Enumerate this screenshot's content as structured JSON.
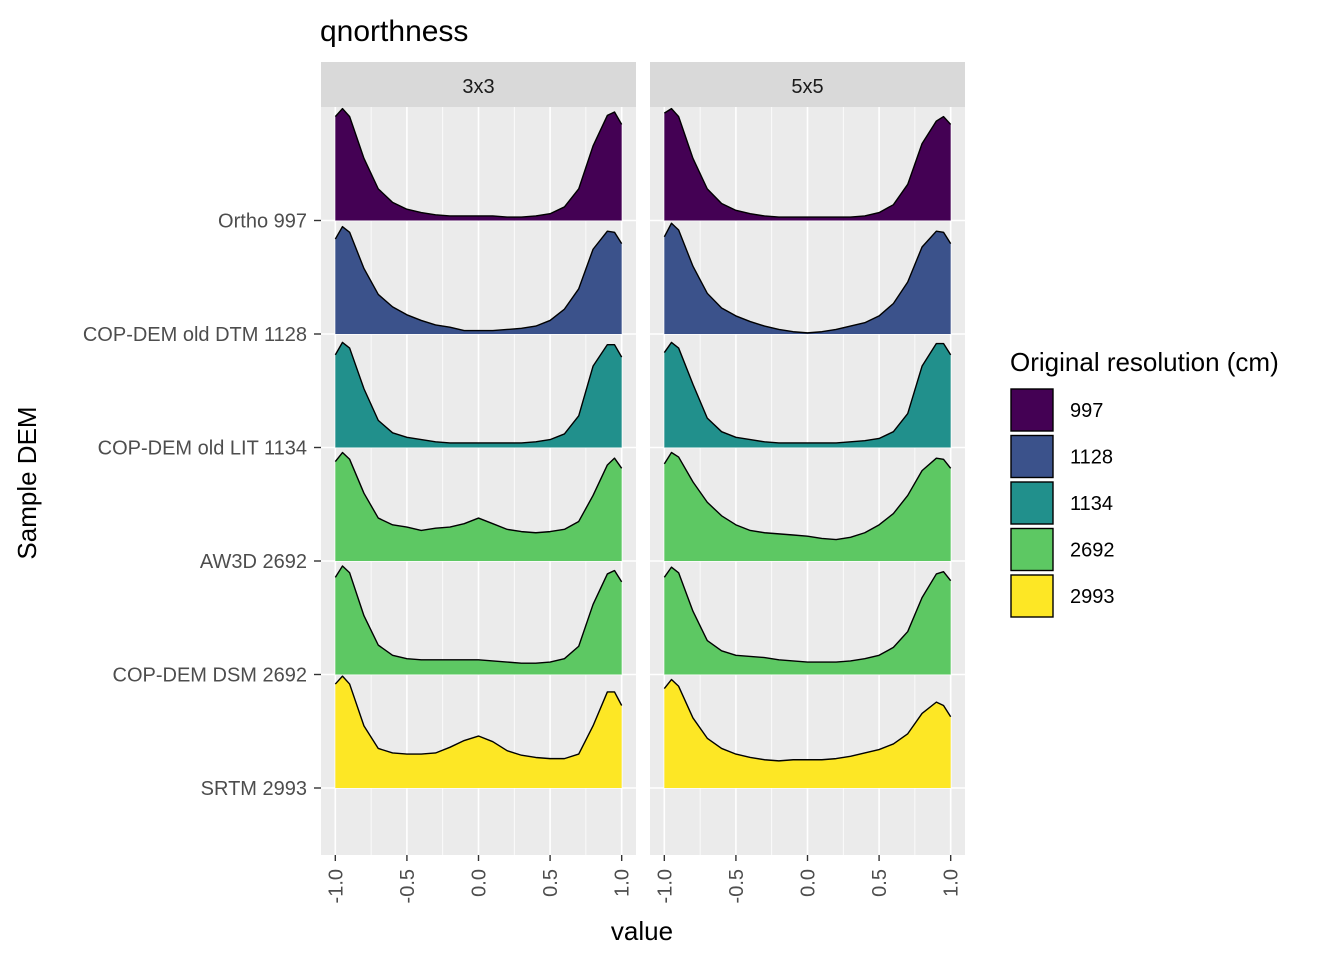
{
  "chart_data": {
    "type": "area",
    "subtype": "ridgeline-density",
    "title": "qnorthness",
    "xlabel": "value",
    "ylabel": "Sample DEM",
    "xlim": [
      -1.1,
      1.1
    ],
    "x_ticks": [
      -1.0,
      -0.5,
      0.0,
      0.5,
      1.0
    ],
    "x_tick_labels": [
      "-1.0",
      "-0.5",
      "0.0",
      "0.5",
      "1.0"
    ],
    "grid": true,
    "legend": {
      "title": "Original resolution (cm)",
      "placement": "right",
      "items": [
        {
          "label": "997",
          "color": "#440154"
        },
        {
          "label": "1128",
          "color": "#3B528B"
        },
        {
          "label": "1134",
          "color": "#21908C"
        },
        {
          "label": "2692",
          "color": "#5DC863"
        },
        {
          "label": "2993",
          "color": "#FDE725"
        }
      ]
    },
    "categories": [
      "Ortho 997",
      "COP-DEM old DTM 1128",
      "COP-DEM old LIT 1134",
      "AW3D 2692",
      "COP-DEM DSM 2692",
      "SRTM 2993"
    ],
    "x": [
      -1.0,
      -0.95,
      -0.9,
      -0.8,
      -0.7,
      -0.6,
      -0.5,
      -0.4,
      -0.3,
      -0.2,
      -0.1,
      0.0,
      0.1,
      0.2,
      0.3,
      0.4,
      0.5,
      0.6,
      0.7,
      0.8,
      0.9,
      0.95,
      1.0
    ],
    "facets": [
      {
        "name": "3x3",
        "series": [
          {
            "name": "Ortho 997",
            "color": "#440154",
            "values": [
              0.92,
              0.99,
              0.92,
              0.55,
              0.28,
              0.16,
              0.1,
              0.07,
              0.05,
              0.04,
              0.04,
              0.04,
              0.04,
              0.03,
              0.03,
              0.04,
              0.06,
              0.12,
              0.28,
              0.66,
              0.93,
              0.96,
              0.85
            ]
          },
          {
            "name": "COP-DEM old DTM 1128",
            "color": "#3B528B",
            "values": [
              0.84,
              0.95,
              0.9,
              0.58,
              0.35,
              0.24,
              0.17,
              0.12,
              0.08,
              0.06,
              0.03,
              0.03,
              0.03,
              0.04,
              0.05,
              0.07,
              0.12,
              0.22,
              0.4,
              0.75,
              0.91,
              0.9,
              0.8
            ]
          },
          {
            "name": "COP-DEM old LIT 1134",
            "color": "#21908C",
            "values": [
              0.82,
              0.93,
              0.88,
              0.52,
              0.24,
              0.13,
              0.09,
              0.07,
              0.05,
              0.04,
              0.04,
              0.04,
              0.04,
              0.04,
              0.04,
              0.05,
              0.07,
              0.12,
              0.28,
              0.72,
              0.91,
              0.91,
              0.8
            ]
          },
          {
            "name": "AW3D 2692",
            "color": "#5DC863",
            "values": [
              0.88,
              0.96,
              0.9,
              0.6,
              0.38,
              0.32,
              0.3,
              0.27,
              0.29,
              0.3,
              0.33,
              0.38,
              0.33,
              0.28,
              0.26,
              0.25,
              0.26,
              0.28,
              0.35,
              0.58,
              0.85,
              0.91,
              0.82
            ]
          },
          {
            "name": "COP-DEM DSM 2692",
            "color": "#5DC863",
            "values": [
              0.86,
              0.96,
              0.9,
              0.52,
              0.26,
              0.17,
              0.14,
              0.13,
              0.13,
              0.13,
              0.13,
              0.13,
              0.12,
              0.11,
              0.1,
              0.1,
              0.11,
              0.14,
              0.25,
              0.62,
              0.89,
              0.92,
              0.82
            ]
          },
          {
            "name": "SRTM 2993",
            "color": "#FDE725",
            "values": [
              0.92,
              0.99,
              0.92,
              0.55,
              0.35,
              0.31,
              0.3,
              0.3,
              0.31,
              0.36,
              0.42,
              0.46,
              0.41,
              0.33,
              0.29,
              0.27,
              0.26,
              0.26,
              0.3,
              0.55,
              0.85,
              0.85,
              0.73
            ]
          }
        ]
      },
      {
        "name": "5x5",
        "series": [
          {
            "name": "Ortho 997",
            "color": "#440154",
            "values": [
              0.95,
              0.99,
              0.92,
              0.55,
              0.28,
              0.15,
              0.09,
              0.06,
              0.04,
              0.03,
              0.03,
              0.03,
              0.03,
              0.03,
              0.03,
              0.04,
              0.07,
              0.14,
              0.32,
              0.68,
              0.88,
              0.92,
              0.85
            ]
          },
          {
            "name": "COP-DEM old DTM 1128",
            "color": "#3B528B",
            "values": [
              0.86,
              0.98,
              0.92,
              0.6,
              0.36,
              0.23,
              0.16,
              0.11,
              0.07,
              0.04,
              0.02,
              0.01,
              0.02,
              0.04,
              0.07,
              0.1,
              0.16,
              0.27,
              0.46,
              0.77,
              0.91,
              0.9,
              0.8
            ]
          },
          {
            "name": "COP-DEM old LIT 1134",
            "color": "#21908C",
            "values": [
              0.84,
              0.93,
              0.88,
              0.56,
              0.26,
              0.14,
              0.09,
              0.07,
              0.05,
              0.04,
              0.04,
              0.04,
              0.04,
              0.04,
              0.05,
              0.06,
              0.08,
              0.14,
              0.3,
              0.72,
              0.92,
              0.92,
              0.82
            ]
          },
          {
            "name": "AW3D 2692",
            "color": "#5DC863",
            "values": [
              0.86,
              0.96,
              0.92,
              0.7,
              0.52,
              0.4,
              0.32,
              0.27,
              0.25,
              0.24,
              0.23,
              0.22,
              0.2,
              0.19,
              0.21,
              0.25,
              0.32,
              0.42,
              0.58,
              0.8,
              0.91,
              0.9,
              0.82
            ]
          },
          {
            "name": "COP-DEM DSM 2692",
            "color": "#5DC863",
            "values": [
              0.86,
              0.95,
              0.9,
              0.56,
              0.3,
              0.21,
              0.17,
              0.16,
              0.15,
              0.13,
              0.12,
              0.11,
              0.11,
              0.11,
              0.12,
              0.14,
              0.17,
              0.24,
              0.38,
              0.68,
              0.89,
              0.91,
              0.83
            ]
          },
          {
            "name": "SRTM 2993",
            "color": "#FDE725",
            "values": [
              0.88,
              0.96,
              0.9,
              0.62,
              0.44,
              0.35,
              0.3,
              0.27,
              0.25,
              0.24,
              0.25,
              0.25,
              0.25,
              0.26,
              0.28,
              0.31,
              0.34,
              0.39,
              0.48,
              0.66,
              0.76,
              0.73,
              0.63
            ]
          }
        ]
      }
    ]
  }
}
